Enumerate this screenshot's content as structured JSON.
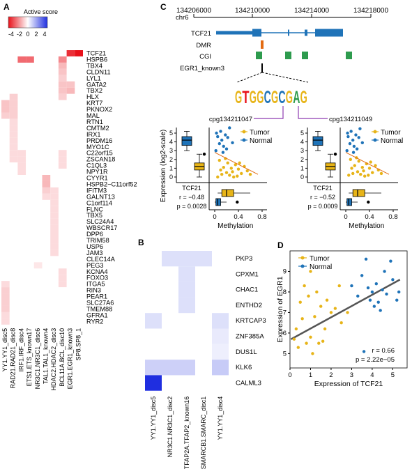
{
  "panel_labels": {
    "a": "A",
    "b": "B",
    "c": "C",
    "d": "D"
  },
  "colors": {
    "red": "#e8111a",
    "blue": "#1f2ee0",
    "tumor": "#e7b418",
    "normal": "#1f73b8",
    "gene": "#1f73b8",
    "dmr": "#e36b12",
    "cgi": "#2e9b4e",
    "link": "#8e3bb0"
  },
  "panel_a": {
    "legend_title": "Active score",
    "legend_ticks": [
      "-4",
      "-2",
      "0",
      "2",
      "4"
    ],
    "rows": [
      "TCF21",
      "HSPB6",
      "TBX4",
      "CLDN11",
      "LYL1",
      "GATA2",
      "TBX2",
      "HLX",
      "KRT7",
      "PKNOX2",
      "MAL",
      "RTN1",
      "CMTM2",
      "IRX1",
      "PRDM16",
      "MYO1C",
      "C22orf15",
      "ZSCAN18",
      "C1QL3",
      "NPY1R",
      "CYYR1",
      "HSPB2−C11orf52",
      "IFITM3",
      "GALNT13",
      "C1orf114",
      "FLNC",
      "TBX5",
      "SLC24A4",
      "WBSCR17",
      "DPP6",
      "TRIM58",
      "USP6",
      "JAM3",
      "CLEC14A",
      "PEG3",
      "KCNA4",
      "FOXO3",
      "ITGA5",
      "RIN3",
      "PEAR1",
      "SLC27A6",
      "TMEM88",
      "GFRA1",
      "RYR2"
    ],
    "columns": [
      "YY1.YY1_disc5",
      "RAD21.RAD21_disc8",
      "IRF1.IRF_disc4",
      "ETS1.ETS_known17",
      "NR3C1.NR3C1_disc6",
      "TAL1.TAL1_known4",
      "HDAC2.HDAC2_disc3",
      "BCL11A.BCL_disc10",
      "EGR1.EGR1_known3",
      "SP8.SP8_1"
    ],
    "cells": [
      [
        0,
        8,
        3.5
      ],
      [
        0,
        9,
        4
      ],
      [
        1,
        2,
        2.5
      ],
      [
        1,
        3,
        2.5
      ],
      [
        1,
        7,
        2
      ],
      [
        2,
        7,
        1.2
      ],
      [
        3,
        7,
        1
      ],
      [
        4,
        7,
        0.8
      ],
      [
        5,
        7,
        1
      ],
      [
        5,
        8,
        1
      ],
      [
        6,
        7,
        1
      ],
      [
        6,
        8,
        1.2
      ],
      [
        7,
        1,
        0.8
      ],
      [
        7,
        7,
        0.8
      ],
      [
        8,
        0,
        1
      ],
      [
        8,
        1,
        0.8
      ],
      [
        9,
        0,
        1
      ],
      [
        9,
        1,
        0.8
      ],
      [
        10,
        0,
        0.8
      ],
      [
        10,
        1,
        0.8
      ],
      [
        11,
        1,
        0.6
      ],
      [
        12,
        1,
        0.6
      ],
      [
        13,
        1,
        0.6
      ],
      [
        14,
        1,
        0.6
      ],
      [
        15,
        1,
        0.6
      ],
      [
        16,
        1,
        0.6
      ],
      [
        16,
        2,
        0.6
      ],
      [
        16,
        7,
        0.6
      ],
      [
        17,
        1,
        0.6
      ],
      [
        17,
        2,
        0.6
      ],
      [
        17,
        7,
        0.6
      ],
      [
        18,
        2,
        0.6
      ],
      [
        18,
        7,
        0.6
      ],
      [
        19,
        2,
        0.6
      ],
      [
        20,
        5,
        1.2
      ],
      [
        21,
        5,
        1.2
      ],
      [
        22,
        5,
        0.8
      ],
      [
        22,
        6,
        0.6
      ],
      [
        23,
        5,
        0.6
      ],
      [
        23,
        6,
        0.6
      ],
      [
        24,
        6,
        0.6
      ],
      [
        25,
        6,
        0.6
      ],
      [
        26,
        6,
        0.6
      ],
      [
        27,
        6,
        0.6
      ],
      [
        28,
        6,
        0.6
      ],
      [
        29,
        6,
        0.6
      ],
      [
        30,
        6,
        0.6
      ],
      [
        31,
        6,
        0.6
      ],
      [
        32,
        6,
        0.6
      ],
      [
        34,
        4,
        0.4
      ],
      [
        35,
        7,
        0.6
      ],
      [
        36,
        7,
        0.6
      ],
      [
        37,
        0,
        0.6
      ],
      [
        37,
        7,
        0.6
      ],
      [
        38,
        0,
        0.8
      ],
      [
        39,
        0,
        0.8
      ],
      [
        40,
        0,
        0.8
      ],
      [
        41,
        0,
        0.8
      ],
      [
        42,
        0,
        0.6
      ],
      [
        43,
        0,
        0.6
      ]
    ]
  },
  "panel_b": {
    "rows": [
      "PKP3",
      "CPXM1",
      "CHAC1",
      "ENTHD2",
      "KRTCAP3",
      "ZNF385A",
      "DUS1L",
      "KLK6",
      "CALML3"
    ],
    "columns": [
      "YY1.YY1_disc5",
      "NR3C1.NR3C1_disc2",
      "TFAP2A.TFAP2_known16",
      "SMARCB1.SMARC_disc1",
      "YY1.YY1_disc4"
    ],
    "cells": [
      [
        0,
        1,
        -0.6
      ],
      [
        0,
        2,
        -0.6
      ],
      [
        0,
        3,
        -0.6
      ],
      [
        1,
        2,
        -0.6
      ],
      [
        2,
        2,
        -0.6
      ],
      [
        3,
        2,
        -0.6
      ],
      [
        4,
        0,
        -0.6
      ],
      [
        4,
        4,
        -0.6
      ],
      [
        5,
        4,
        -0.4
      ],
      [
        6,
        4,
        -0.3
      ],
      [
        7,
        0,
        -0.9
      ],
      [
        7,
        1,
        -0.9
      ],
      [
        7,
        2,
        -0.9
      ],
      [
        7,
        4,
        -1.0
      ],
      [
        8,
        0,
        -4
      ]
    ]
  },
  "panel_c": {
    "chr": "chr6",
    "positions": [
      "134206000",
      "134210000",
      "134214000",
      "134218000"
    ],
    "tracks": [
      "TCF21",
      "DMR",
      "CGI"
    ],
    "motif_name": "EGR1_known3",
    "motif": [
      {
        "ch": "G",
        "color": "#e7b418"
      },
      {
        "ch": "T",
        "color": "#e8111a"
      },
      {
        "ch": "G",
        "color": "#e7b418"
      },
      {
        "ch": "G",
        "color": "#e7b418"
      },
      {
        "ch": "C",
        "color": "#1f73b8"
      },
      {
        "ch": "G",
        "color": "#e7b418"
      },
      {
        "ch": "C",
        "color": "#1f73b8"
      },
      {
        "ch": "G",
        "color": "#e7b418"
      },
      {
        "ch": "A",
        "color": "#2e9b4e"
      },
      {
        "ch": "G",
        "color": "#e7b418"
      }
    ],
    "cpg_left": "cpg134211047",
    "cpg_right": "cpg134211049",
    "ylabel": "Expression (log2-scale)",
    "xlabel": "Methylation",
    "legend": [
      "Tumor",
      "Normal"
    ],
    "gene_label": "TCF21",
    "plots": [
      {
        "r": "r = −0.48",
        "p": "p = 0.0028",
        "tumor": [
          [
            0.05,
            0.0
          ],
          [
            0.1,
            0.8
          ],
          [
            0.12,
            0.3
          ],
          [
            0.15,
            1.1
          ],
          [
            0.2,
            0.5
          ],
          [
            0.22,
            1.6
          ],
          [
            0.25,
            0.2
          ],
          [
            0.28,
            1.0
          ],
          [
            0.3,
            0.6
          ],
          [
            0.35,
            1.4
          ],
          [
            0.38,
            0.1
          ],
          [
            0.4,
            0.9
          ],
          [
            0.45,
            0.4
          ],
          [
            0.5,
            1.2
          ],
          [
            0.55,
            0.7
          ],
          [
            0.6,
            0.3
          ],
          [
            0.08,
            1.9
          ],
          [
            0.18,
            2.1
          ],
          [
            0.32,
            0.0
          ],
          [
            0.42,
            1.6
          ]
        ],
        "normal": [
          [
            0.05,
            4.6
          ],
          [
            0.08,
            3.8
          ],
          [
            0.1,
            5.2
          ],
          [
            0.12,
            4.2
          ],
          [
            0.15,
            3.5
          ],
          [
            0.18,
            4.8
          ],
          [
            0.2,
            3.2
          ],
          [
            0.22,
            4.5
          ],
          [
            0.25,
            5.6
          ],
          [
            0.02,
            3.0
          ],
          [
            0.03,
            5.0
          ],
          [
            0.14,
            2.8
          ],
          [
            0.3,
            3.9
          ]
        ]
      },
      {
        "r": "r = −0.52",
        "p": "p = 0.0009",
        "tumor": [
          [
            0.05,
            0.2
          ],
          [
            0.1,
            1.0
          ],
          [
            0.12,
            0.4
          ],
          [
            0.15,
            1.3
          ],
          [
            0.2,
            0.6
          ],
          [
            0.22,
            1.8
          ],
          [
            0.25,
            0.3
          ],
          [
            0.28,
            1.1
          ],
          [
            0.3,
            0.7
          ],
          [
            0.35,
            1.5
          ],
          [
            0.38,
            0.2
          ],
          [
            0.4,
            1.0
          ],
          [
            0.45,
            0.5
          ],
          [
            0.5,
            1.3
          ],
          [
            0.55,
            0.8
          ],
          [
            0.6,
            0.4
          ],
          [
            0.08,
            2.0
          ],
          [
            0.18,
            2.2
          ],
          [
            0.32,
            0.1
          ],
          [
            0.42,
            1.7
          ]
        ],
        "normal": [
          [
            0.04,
            4.6
          ],
          [
            0.07,
            3.8
          ],
          [
            0.09,
            5.2
          ],
          [
            0.12,
            4.2
          ],
          [
            0.14,
            3.5
          ],
          [
            0.17,
            4.8
          ],
          [
            0.19,
            3.2
          ],
          [
            0.22,
            4.5
          ],
          [
            0.24,
            5.5
          ],
          [
            0.02,
            3.0
          ],
          [
            0.03,
            5.0
          ],
          [
            0.13,
            2.8
          ],
          [
            0.28,
            3.9
          ]
        ]
      }
    ],
    "box_y_ticks": [
      "5",
      "4",
      "3",
      "2",
      "1",
      "0"
    ],
    "x_ticks": [
      "0",
      "0.4",
      "0.8"
    ]
  },
  "chart_data": {
    "type": "scatter",
    "xlabel": "Expression  of TCF21",
    "ylabel": "Expression of EGR1",
    "xlim": [
      0,
      5.7
    ],
    "ylim": [
      4.3,
      10
    ],
    "x_ticks": [
      "0",
      "1",
      "2",
      "3",
      "4",
      "5"
    ],
    "y_ticks": [
      "5",
      "6",
      "7",
      "8",
      "9"
    ],
    "series": [
      {
        "name": "Tumor",
        "points": [
          [
            0.3,
            6.2
          ],
          [
            0.4,
            5.3
          ],
          [
            0.5,
            7.5
          ],
          [
            0.6,
            6.7
          ],
          [
            0.7,
            8.3
          ],
          [
            0.8,
            5.5
          ],
          [
            0.9,
            7.8
          ],
          [
            1.0,
            5.8
          ],
          [
            1.0,
            9.0
          ],
          [
            1.1,
            5.0
          ],
          [
            1.2,
            6.8
          ],
          [
            1.3,
            8.0
          ],
          [
            1.4,
            5.5
          ],
          [
            1.5,
            7.3
          ],
          [
            1.7,
            6.2
          ],
          [
            1.8,
            7.6
          ],
          [
            2.0,
            7.0
          ],
          [
            2.2,
            7.2
          ],
          [
            2.4,
            8.3
          ],
          [
            2.5,
            6.5
          ],
          [
            2.8,
            7.0
          ],
          [
            0.2,
            5.7
          ],
          [
            1.6,
            5.6
          ]
        ]
      },
      {
        "name": "Normal",
        "points": [
          [
            3.0,
            8.3
          ],
          [
            3.3,
            7.8
          ],
          [
            3.5,
            8.8
          ],
          [
            3.7,
            9.6
          ],
          [
            3.8,
            8.2
          ],
          [
            3.9,
            7.6
          ],
          [
            4.0,
            8.0
          ],
          [
            4.1,
            7.3
          ],
          [
            4.2,
            8.4
          ],
          [
            4.3,
            7.5
          ],
          [
            4.5,
            8.1
          ],
          [
            4.6,
            9.0
          ],
          [
            4.7,
            7.9
          ],
          [
            4.9,
            9.5
          ],
          [
            5.0,
            8.6
          ],
          [
            5.2,
            7.6
          ],
          [
            5.3,
            8.0
          ],
          [
            4.4,
            7.1
          ],
          [
            3.6,
            5.1
          ]
        ]
      }
    ],
    "fit": {
      "x0": 0.05,
      "y0": 5.7,
      "x1": 5.35,
      "y1": 8.6
    },
    "r": "r = 0.66",
    "p": "p = 2.22e−05",
    "legend": "top-left"
  }
}
